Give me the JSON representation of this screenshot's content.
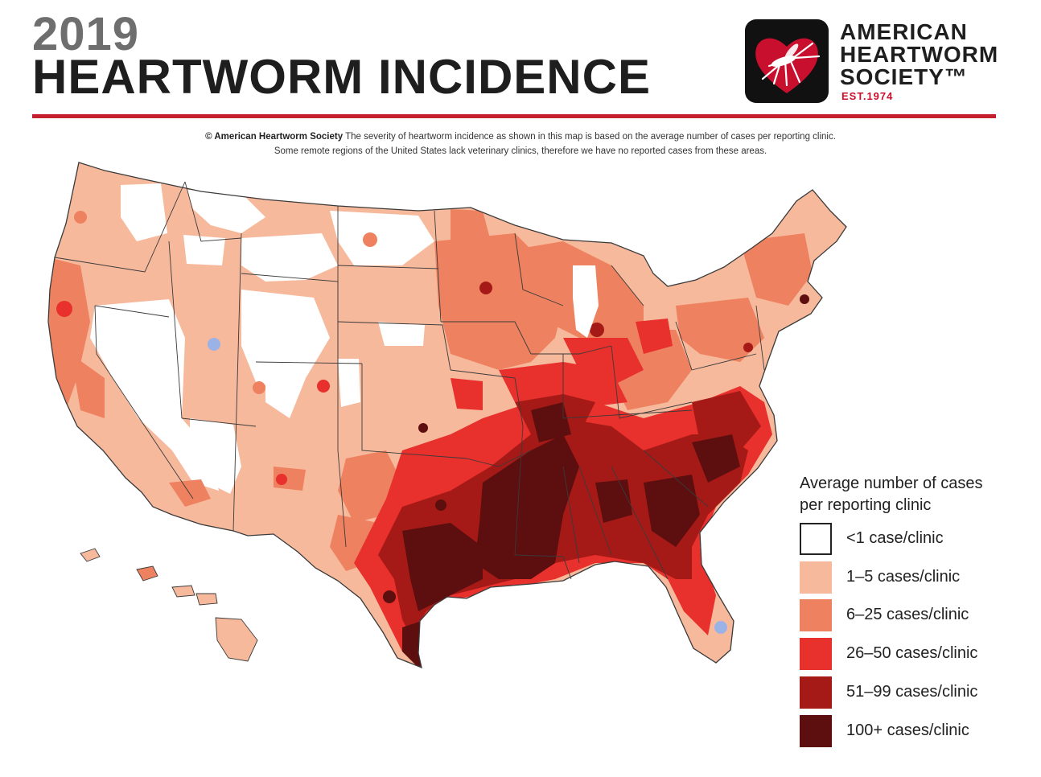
{
  "header": {
    "year": "2019",
    "title": "HEARTWORM INCIDENCE"
  },
  "organization": {
    "line1": "AMERICAN",
    "line2": "HEARTWORM",
    "line3": "SOCIETY™",
    "established": "EST.1974",
    "logo_icon": "mosquito-heart-icon",
    "brand_color": "#c8102e"
  },
  "note": {
    "credit": "© American Heartworm Society",
    "line1": "The severity of heartworm incidence as shown in this map is based on the average number of cases per reporting clinic.",
    "line2": "Some remote regions of the United States lack veterinary clinics, therefore we have no reported cases from these areas."
  },
  "legend": {
    "title_line1": "Average number of cases",
    "title_line2": "per reporting clinic",
    "items": [
      {
        "label": "<1 case/clinic",
        "color": "#ffffff"
      },
      {
        "label": "1–5 cases/clinic",
        "color": "#f7b99c"
      },
      {
        "label": "6–25 cases/clinic",
        "color": "#ee8260"
      },
      {
        "label": "26–50 cases/clinic",
        "color": "#e8302c"
      },
      {
        "label": "51–99 cases/clinic",
        "color": "#a51a17"
      },
      {
        "label": "100+ cases/clinic",
        "color": "#5c0f0e"
      }
    ]
  },
  "map_colors": {
    "none": "#ffffff",
    "low": "#f7b99c",
    "moderate": "#ee8260",
    "high": "#e8302c",
    "very_high": "#a51a17",
    "extreme": "#5c0f0e",
    "border": "#3a3a3a",
    "water": "#9bb2e6"
  }
}
